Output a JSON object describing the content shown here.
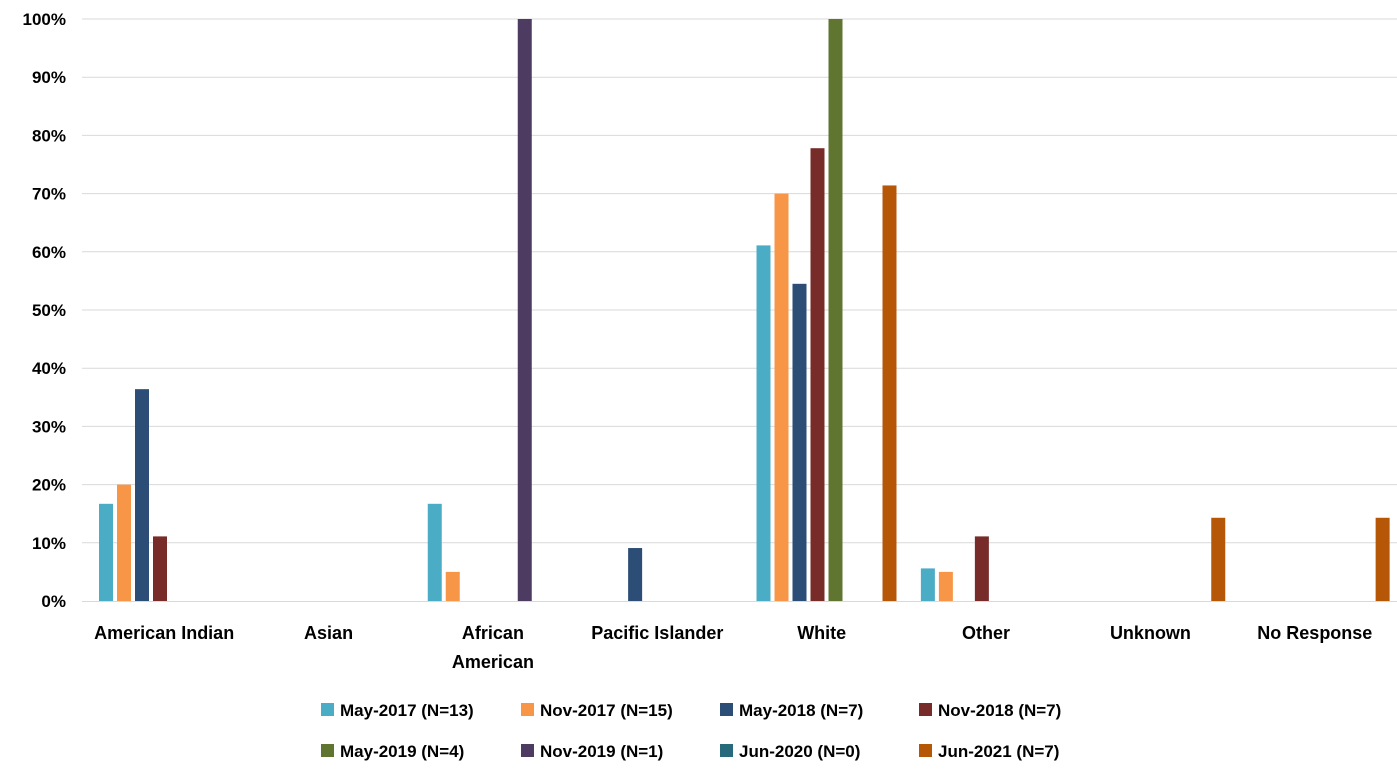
{
  "chart_data": {
    "type": "bar",
    "title": "",
    "xlabel": "",
    "ylabel": "",
    "ylim": [
      0,
      1
    ],
    "y_ticks": [
      "0%",
      "10%",
      "20%",
      "30%",
      "40%",
      "50%",
      "60%",
      "70%",
      "80%",
      "90%",
      "100%"
    ],
    "grid": true,
    "legend_position": "bottom",
    "categories": [
      [
        "American Indian"
      ],
      [
        "Asian"
      ],
      [
        "African",
        "American"
      ],
      [
        "Pacific Islander"
      ],
      [
        "White"
      ],
      [
        "Other"
      ],
      [
        "Unknown"
      ],
      [
        "No Response"
      ]
    ],
    "series": [
      {
        "name": "May-2017 (N=13)",
        "color": "#4bacc6",
        "values": [
          0.167,
          0,
          0.167,
          0,
          0.611,
          0.056,
          0,
          0
        ]
      },
      {
        "name": "Nov-2017 (N=15)",
        "color": "#f79646",
        "values": [
          0.2,
          0,
          0.05,
          0,
          0.7,
          0.05,
          0,
          0
        ]
      },
      {
        "name": "May-2018 (N=7)",
        "color": "#2c4d75",
        "values": [
          0.364,
          0,
          0,
          0.091,
          0.545,
          0,
          0,
          0
        ]
      },
      {
        "name": "Nov-2018 (N=7)",
        "color": "#772c2a",
        "values": [
          0.111,
          0,
          0,
          0,
          0.778,
          0.111,
          0,
          0
        ]
      },
      {
        "name": "May-2019 (N=4)",
        "color": "#5f7530",
        "values": [
          0,
          0,
          0,
          0,
          1.0,
          0,
          0,
          0
        ]
      },
      {
        "name": "Nov-2019 (N=1)",
        "color": "#4d3b62",
        "values": [
          0,
          0,
          1.0,
          0,
          0,
          0,
          0,
          0
        ]
      },
      {
        "name": "Jun-2020 (N=0)",
        "color": "#276a7c",
        "values": [
          0,
          0,
          0,
          0,
          0,
          0,
          0,
          0
        ]
      },
      {
        "name": "Jun-2021 (N=7)",
        "color": "#b65708",
        "values": [
          0,
          0,
          0,
          0,
          0.714,
          0,
          0.143,
          0.143
        ]
      }
    ],
    "axis_color": "#d9d9d9",
    "grid_color": "#d9d9d9"
  }
}
